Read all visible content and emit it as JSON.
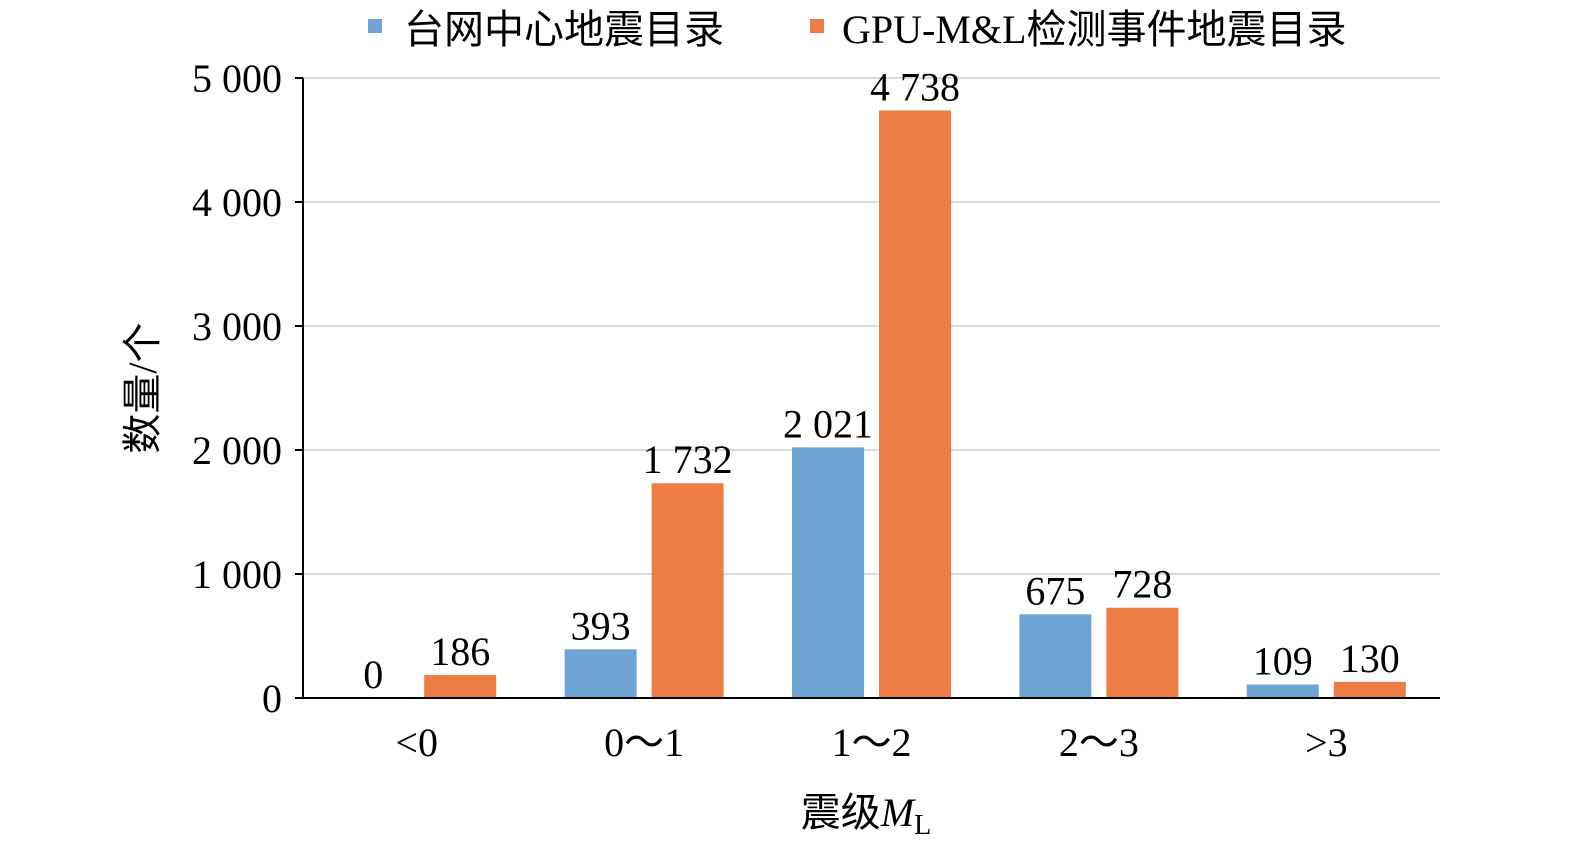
{
  "chart_data": {
    "type": "bar",
    "categories": [
      "<0",
      "0～1",
      "1～2",
      "2～3",
      ">3"
    ],
    "series": [
      {
        "name": "台网中心地震目录",
        "values": [
          0,
          393,
          2021,
          675,
          109
        ],
        "labels": [
          "0",
          "393",
          "2 021",
          "675",
          "109"
        ],
        "color": "#6fa5d4"
      },
      {
        "name": "GPU-M&L检测事件地震目录",
        "values": [
          186,
          1732,
          4738,
          728,
          130
        ],
        "labels": [
          "186",
          "1 732",
          "4 738",
          "728",
          "130"
        ],
        "color": "#ee7d45"
      }
    ],
    "ylabel": "数量/个",
    "xlabel": {
      "text": "震级",
      "symbol": "M",
      "subscript": "L"
    },
    "ylim": [
      0,
      5000
    ],
    "yticks": [
      0,
      1000,
      2000,
      3000,
      4000,
      5000
    ],
    "ytick_labels": [
      "0",
      "1 000",
      "2 000",
      "3 000",
      "4 000",
      "5 000"
    ],
    "grid": true,
    "legend_position": "top"
  }
}
